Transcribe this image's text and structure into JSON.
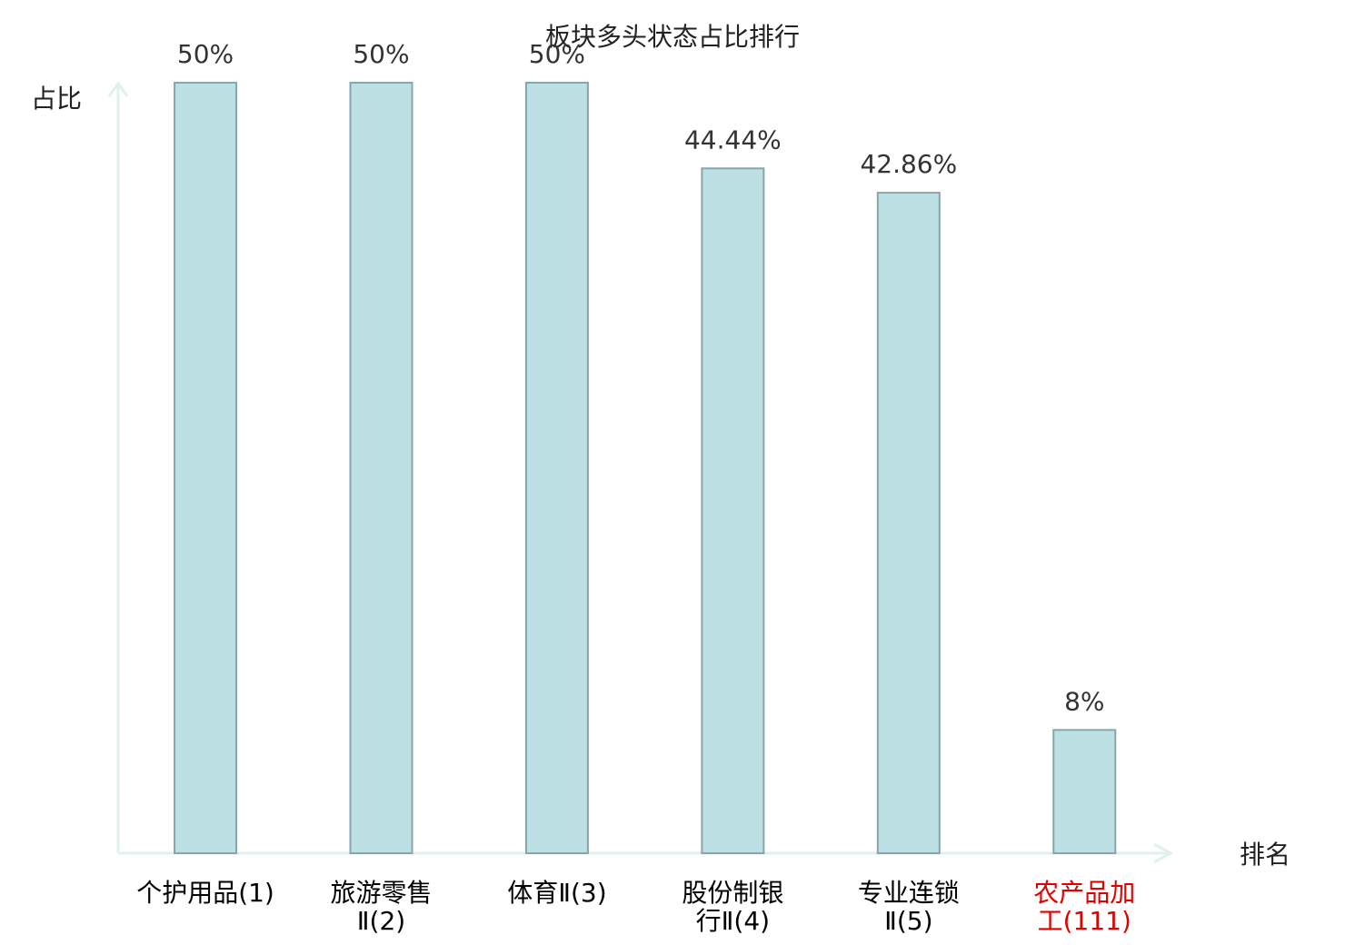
{
  "chart_data": {
    "type": "bar",
    "title": "板块多头状态占比排行",
    "y_label": "占比",
    "x_label": "排名",
    "categories": [
      "个护用品(1)",
      "旅游零售Ⅱ(2)",
      "体育Ⅱ(3)",
      "股份制银行Ⅱ(4)",
      "专业连锁Ⅱ(5)",
      "农产品加工(111)"
    ],
    "category_label_colors": [
      "#000000",
      "#000000",
      "#000000",
      "#000000",
      "#000000",
      "#e00000"
    ],
    "values": [
      50,
      50,
      50,
      44.44,
      42.86,
      8
    ],
    "value_labels": [
      "50%",
      "50%",
      "50%",
      "44.44%",
      "42.86%",
      "8%"
    ],
    "color": "#bce0e3",
    "edge_color": "#86a6aa",
    "ylim": [
      0,
      50
    ],
    "grid": false
  }
}
